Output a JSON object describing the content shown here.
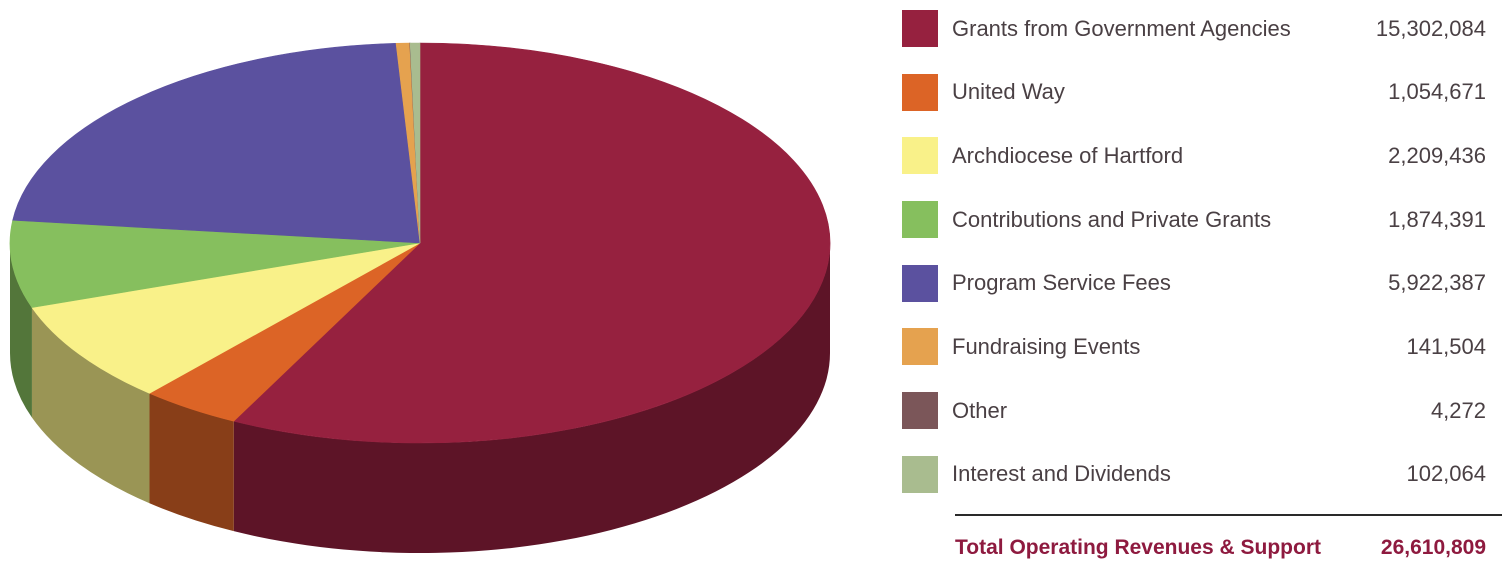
{
  "chart_data": {
    "type": "pie",
    "title": "",
    "slices": [
      {
        "label": "Grants from Government Agencies",
        "value": 15302084,
        "value_text": "15,302,084",
        "color": "#96213f"
      },
      {
        "label": "United Way",
        "value": 1054671,
        "value_text": "1,054,671",
        "color": "#dc6426"
      },
      {
        "label": "Archdiocese of Hartford",
        "value": 2209436,
        "value_text": "2,209,436",
        "color": "#f9f189"
      },
      {
        "label": "Contributions and Private Grants",
        "value": 1874391,
        "value_text": "1,874,391",
        "color": "#86bf5e"
      },
      {
        "label": "Program Service Fees",
        "value": 5922387,
        "value_text": "5,922,387",
        "color": "#5b519f"
      },
      {
        "label": "Fundraising Events",
        "value": 141504,
        "value_text": "141,504",
        "color": "#e5a24f"
      },
      {
        "label": "Other",
        "value": 4272,
        "value_text": "4,272",
        "color": "#7b5659"
      },
      {
        "label": "Interest and Dividends",
        "value": 102064,
        "value_text": "102,064",
        "color": "#a9bc8f"
      }
    ],
    "total_label": "Total Operating Revenues & Support",
    "total_value": 26610809,
    "total_text": "26,610,809",
    "legend_position": "right"
  }
}
